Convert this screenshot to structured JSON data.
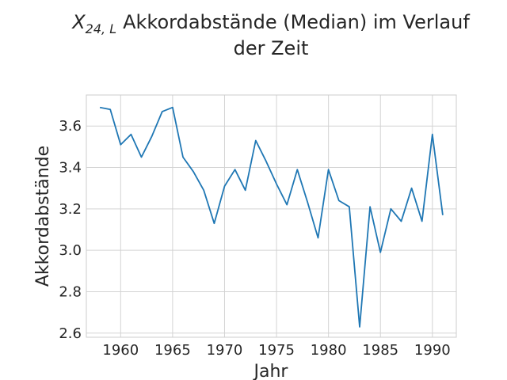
{
  "chart_data": {
    "type": "line",
    "title": {
      "math_symbol": "X",
      "math_subscript": "24, L",
      "line1_rest": "Akkordabstände (Median) im Verlauf",
      "line2": "der Zeit"
    },
    "xlabel": "Jahr",
    "ylabel": "Akkordabstände",
    "xlim": [
      1956.7,
      1992.3
    ],
    "ylim": [
      2.58,
      3.75
    ],
    "xticks": [
      1960,
      1965,
      1970,
      1975,
      1980,
      1985,
      1990
    ],
    "yticks": [
      2.6,
      2.8,
      3.0,
      3.2,
      3.4,
      3.6
    ],
    "ytick_labels": [
      "2.6",
      "2.8",
      "3.0",
      "3.2",
      "3.4",
      "3.6"
    ],
    "grid": true,
    "series": [
      {
        "color": "#1f77b4",
        "x": [
          1958,
          1959,
          1960,
          1961,
          1962,
          1963,
          1964,
          1965,
          1966,
          1967,
          1968,
          1969,
          1970,
          1971,
          1972,
          1973,
          1974,
          1975,
          1976,
          1977,
          1978,
          1979,
          1980,
          1981,
          1982,
          1983,
          1984,
          1985,
          1986,
          1987,
          1988,
          1989,
          1990,
          1991
        ],
        "y": [
          3.69,
          3.68,
          3.51,
          3.56,
          3.45,
          3.55,
          3.67,
          3.69,
          3.45,
          3.38,
          3.29,
          3.13,
          3.31,
          3.39,
          3.29,
          3.53,
          3.43,
          3.32,
          3.22,
          3.39,
          3.23,
          3.06,
          3.39,
          3.24,
          3.21,
          2.63,
          3.21,
          2.99,
          3.2,
          3.14,
          3.3,
          3.14,
          3.56,
          3.17
        ]
      }
    ]
  }
}
